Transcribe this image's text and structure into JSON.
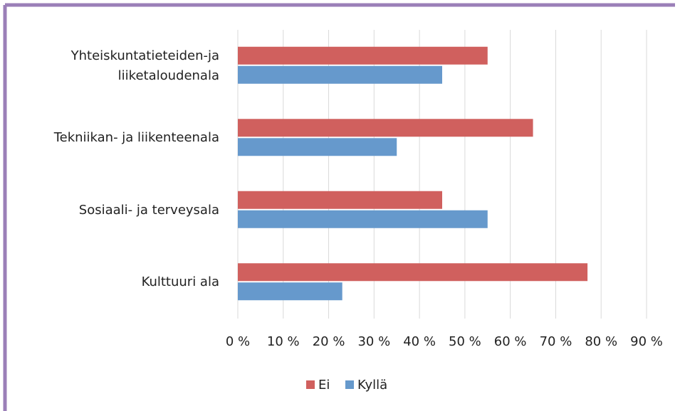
{
  "chart_data": {
    "type": "bar",
    "orientation": "horizontal",
    "categories": [
      "Yhteiskuntatieteiden-ja liiketaloudenala",
      "Tekniikan- ja liikenteenala",
      "Sosiaali- ja terveysala",
      "Kulttuuri ala"
    ],
    "series": [
      {
        "name": "Ei",
        "color": "#d0605e",
        "values": [
          55,
          65,
          45,
          77
        ]
      },
      {
        "name": "Kyllä",
        "color": "#6699cc",
        "values": [
          45,
          35,
          55,
          23
        ]
      }
    ],
    "xlim": [
      0,
      90
    ],
    "xticks": [
      {
        "value": 0,
        "label": "0 %"
      },
      {
        "value": 10,
        "label": "10 %"
      },
      {
        "value": 20,
        "label": "20 %"
      },
      {
        "value": 30,
        "label": "30 %"
      },
      {
        "value": 40,
        "label": "40 %"
      },
      {
        "value": 50,
        "label": "50 %"
      },
      {
        "value": 60,
        "label": "60 %"
      },
      {
        "value": 70,
        "label": "70 %"
      },
      {
        "value": 80,
        "label": "80 %"
      },
      {
        "value": 90,
        "label": "90 %"
      }
    ],
    "grid": true,
    "legend": "bottom"
  }
}
